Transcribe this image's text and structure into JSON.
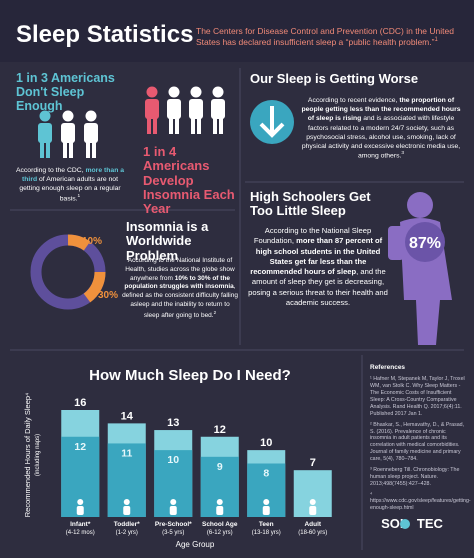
{
  "header": {
    "title": "Sleep Statistics",
    "intro": "The Centers for Disease Control and Prevention (CDC) in the United States has declared insufficient sleep a “public health problem.”",
    "intro_ref": "1"
  },
  "stat_adults": {
    "title": "1 in 3 Americans Don't Sleep Enough",
    "text": [
      "According to the CDC, ",
      "more than a third",
      " of American adults are not getting enough sleep on a regular basis."
    ],
    "ref": "1"
  },
  "stat_insomnia": {
    "title": "1 in 4 Americans Develop Insomnia Each Year"
  },
  "worse": {
    "title": "Our Sleep is Getting Worse",
    "text": [
      "According to recent evidence, ",
      "the proportion of people getting less than the recommended hours of sleep is rising",
      " and is associated with lifestyle factors related to a modern 24/7 society, such as psychosocial stress, alcohol use, smoking, lack of physical activity and excessive electronic media use, among others."
    ],
    "ref": "3"
  },
  "high_school": {
    "title": "High Schoolers Get Too Little Sleep",
    "badge": "87%",
    "text": [
      "According to the National Sleep Foundation, ",
      "more than 87 percent of high school students in the United States get far less than the recommended hours of sleep",
      ", and the amount of sleep they get is decreasing, posing a serious threat to their health and academic success."
    ]
  },
  "worldwide": {
    "title": "Insomnia is a Worldwide Problem",
    "low": "10%",
    "high": "30%",
    "text": [
      "According to the National Institute of Health, studies across the globe show anywhere from ",
      "10% to 30% of the population struggles with insomnia",
      ", defined as the consistent difficulty falling asleep and the inability to return to sleep after going to bed."
    ],
    "ref": "2"
  },
  "references": {
    "title": "References",
    "items": [
      "¹ Hafner M, Stepanek M, Taylor J, Troxel WM, van Stolk C. Why Sleep Matters - The Economic Costs of Insufficient Sleep: A Cross-Country Comparative Analysis. Rand Health Q. 2017;6(4):11. Published 2017 Jan 1.",
      "² Bhaskar, S., Hemavathy, D., & Prasad, S. (2016). Prevalence of chronic insomnia in adult patients and its correlation with medical comorbidities. Journal of family medicine and primary care, 5(4), 780–784.",
      "³ Roenneberg Till. Chronobiology: The human sleep project. Nature. 2013;498(7455):427–428.",
      "⁴ https://www.cdc.gov/sleep/features/getting-enough-sleep.html"
    ]
  },
  "logo": [
    "SOL",
    "TEC"
  ],
  "chart_data": {
    "type": "bar",
    "title": "How Much Sleep Do I Need?",
    "y_label": [
      "Recommended Hours of Daily Sleep⁴",
      "(including naps)"
    ],
    "x_label": "Age Group",
    "categories": [
      "Infant*",
      "Toddler*",
      "Pre-School*",
      "School Age",
      "Teen",
      "Adult"
    ],
    "category_ages": [
      "(4-12 mos)",
      "(1-2 yrs)",
      "(3-5 yrs)",
      "(6-12 yrs)",
      "(13-18 yrs)",
      "(18-60 yrs)"
    ],
    "series": [
      {
        "color": "#86d3df",
        "values": [
          16,
          14,
          13,
          12,
          10,
          7
        ]
      },
      {
        "color": "#3aa6bf",
        "values": [
          12,
          11,
          10,
          9,
          8,
          null
        ]
      }
    ],
    "ylim": [
      0,
      16
    ]
  }
}
